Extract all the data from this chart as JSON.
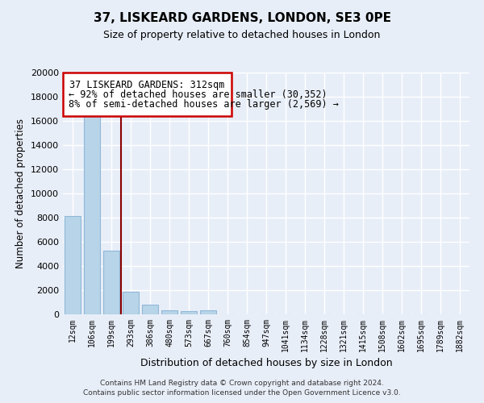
{
  "title": "37, LISKEARD GARDENS, LONDON, SE3 0PE",
  "subtitle": "Size of property relative to detached houses in London",
  "xlabel": "Distribution of detached houses by size in London",
  "ylabel": "Number of detached properties",
  "bar_labels": [
    "12sqm",
    "106sqm",
    "199sqm",
    "293sqm",
    "386sqm",
    "480sqm",
    "573sqm",
    "667sqm",
    "760sqm",
    "854sqm",
    "947sqm",
    "1041sqm",
    "1134sqm",
    "1228sqm",
    "1321sqm",
    "1415sqm",
    "1508sqm",
    "1602sqm",
    "1695sqm",
    "1789sqm",
    "1882sqm"
  ],
  "bar_values": [
    8150,
    16500,
    5300,
    1850,
    820,
    320,
    280,
    310,
    0,
    0,
    0,
    0,
    0,
    0,
    0,
    0,
    0,
    0,
    0,
    0,
    0
  ],
  "bar_color": "#b8d4e8",
  "bar_edge_color": "#90b8d8",
  "property_line_color": "#8b0000",
  "property_line_x": 2.5,
  "annotation_line1": "37 LISKEARD GARDENS: 312sqm",
  "annotation_line2": "← 92% of detached houses are smaller (30,352)",
  "annotation_line3": "8% of semi-detached houses are larger (2,569) →",
  "ylim": [
    0,
    20000
  ],
  "yticks": [
    0,
    2000,
    4000,
    6000,
    8000,
    10000,
    12000,
    14000,
    16000,
    18000,
    20000
  ],
  "footer_line1": "Contains HM Land Registry data © Crown copyright and database right 2024.",
  "footer_line2": "Contains public sector information licensed under the Open Government Licence v3.0.",
  "bg_color": "#e8eef8",
  "plot_bg_color": "#e8eef8",
  "grid_color": "#ffffff"
}
